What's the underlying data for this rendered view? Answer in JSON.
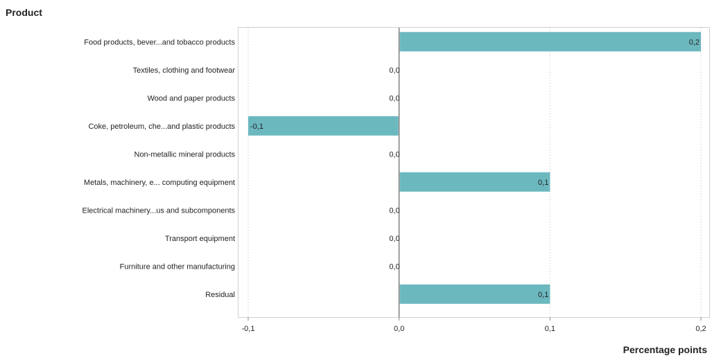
{
  "chart_data": {
    "type": "bar",
    "orientation": "horizontal",
    "ylabel": "Product",
    "xlabel": "Percentage points",
    "xlim": [
      -0.1,
      0.2
    ],
    "xticks": [
      {
        "value": -0.1,
        "label": "-0,1"
      },
      {
        "value": 0.0,
        "label": "0,0"
      },
      {
        "value": 0.1,
        "label": "0,1"
      },
      {
        "value": 0.2,
        "label": "0,2"
      }
    ],
    "grid": "vertical-dotted",
    "bar_color": "#6cb8bf",
    "categories": [
      "Food products, bever...and tobacco products",
      "Textiles, clothing and footwear",
      "Wood and paper products",
      "Coke, petroleum, che...and plastic products",
      "Non-metallic mineral products",
      "Metals, machinery, e... computing equipment",
      "Electrical machinery...us and subcomponents",
      "Transport equipment",
      "Furniture and other manufacturing",
      "Residual"
    ],
    "values": [
      0.2,
      0.0,
      0.0,
      -0.1,
      0.0,
      0.1,
      0.0,
      0.0,
      0.0,
      0.1
    ],
    "data_labels": [
      "0,2",
      "0,0",
      "0,0",
      "-0,1",
      "0,0",
      "0,1",
      "0,0",
      "0,0",
      "0,0",
      "0,1"
    ]
  }
}
